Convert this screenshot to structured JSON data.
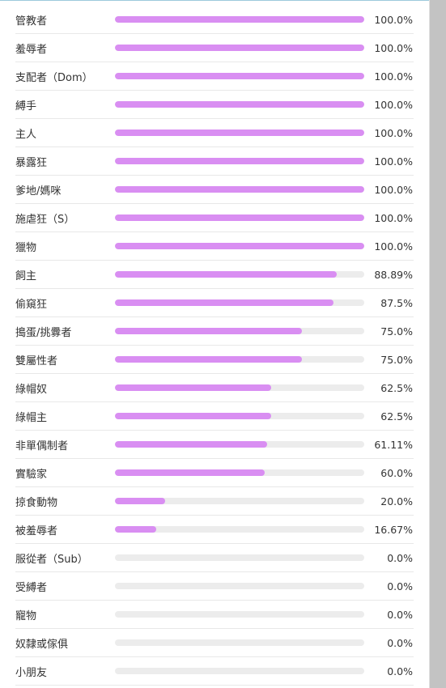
{
  "colors": {
    "bar_fill": "#d98ef2",
    "bar_track": "#ececec"
  },
  "results": [
    {
      "label": "管教者",
      "value": 100.0,
      "display": "100.0%"
    },
    {
      "label": "羞辱者",
      "value": 100.0,
      "display": "100.0%"
    },
    {
      "label": "支配者（Dom）",
      "value": 100.0,
      "display": "100.0%"
    },
    {
      "label": "縛手",
      "value": 100.0,
      "display": "100.0%"
    },
    {
      "label": "主人",
      "value": 100.0,
      "display": "100.0%"
    },
    {
      "label": "暴露狂",
      "value": 100.0,
      "display": "100.0%"
    },
    {
      "label": "爹地/媽咪",
      "value": 100.0,
      "display": "100.0%"
    },
    {
      "label": "施虐狂（S）",
      "value": 100.0,
      "display": "100.0%"
    },
    {
      "label": "獵物",
      "value": 100.0,
      "display": "100.0%"
    },
    {
      "label": "飼主",
      "value": 88.89,
      "display": "88.89%"
    },
    {
      "label": "偷窺狂",
      "value": 87.5,
      "display": "87.5%"
    },
    {
      "label": "搗蛋/挑釁者",
      "value": 75.0,
      "display": "75.0%"
    },
    {
      "label": "雙屬性者",
      "value": 75.0,
      "display": "75.0%"
    },
    {
      "label": "綠帽奴",
      "value": 62.5,
      "display": "62.5%"
    },
    {
      "label": "綠帽主",
      "value": 62.5,
      "display": "62.5%"
    },
    {
      "label": "非單偶制者",
      "value": 61.11,
      "display": "61.11%"
    },
    {
      "label": "實驗家",
      "value": 60.0,
      "display": "60.0%"
    },
    {
      "label": "掠食動物",
      "value": 20.0,
      "display": "20.0%"
    },
    {
      "label": "被羞辱者",
      "value": 16.67,
      "display": "16.67%"
    },
    {
      "label": "服從者（Sub）",
      "value": 0.0,
      "display": "0.0%"
    },
    {
      "label": "受縛者",
      "value": 0.0,
      "display": "0.0%"
    },
    {
      "label": "寵物",
      "value": 0.0,
      "display": "0.0%"
    },
    {
      "label": "奴隸或傢俱",
      "value": 0.0,
      "display": "0.0%"
    },
    {
      "label": "小朋友",
      "value": 0.0,
      "display": "0.0%"
    }
  ]
}
